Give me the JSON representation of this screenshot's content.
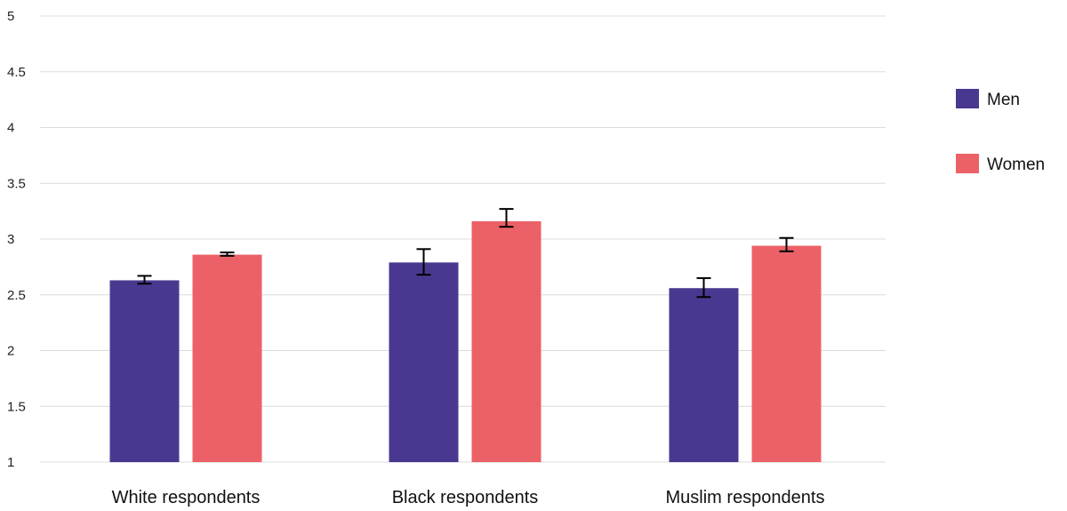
{
  "chart_data": {
    "type": "bar",
    "categories": [
      "White respondents",
      "Black respondents",
      "Muslim respondents"
    ],
    "series": [
      {
        "name": "Men",
        "color": "#4a3890",
        "values": [
          2.63,
          2.79,
          2.56
        ],
        "error_low": [
          2.6,
          2.68,
          2.48
        ],
        "error_high": [
          2.67,
          2.91,
          2.65
        ]
      },
      {
        "name": "Women",
        "color": "#ec6167",
        "values": [
          2.86,
          3.16,
          2.94
        ],
        "error_low": [
          2.85,
          3.11,
          2.89
        ],
        "error_high": [
          2.88,
          3.27,
          3.01
        ]
      }
    ],
    "ylim": [
      1,
      5
    ],
    "yticks": [
      "1",
      "1.5",
      "2",
      "2.5",
      "3",
      "3.5",
      "4",
      "4.5",
      "5"
    ],
    "grid": true,
    "legend_position": "right",
    "title": "",
    "xlabel": "",
    "ylabel": ""
  }
}
